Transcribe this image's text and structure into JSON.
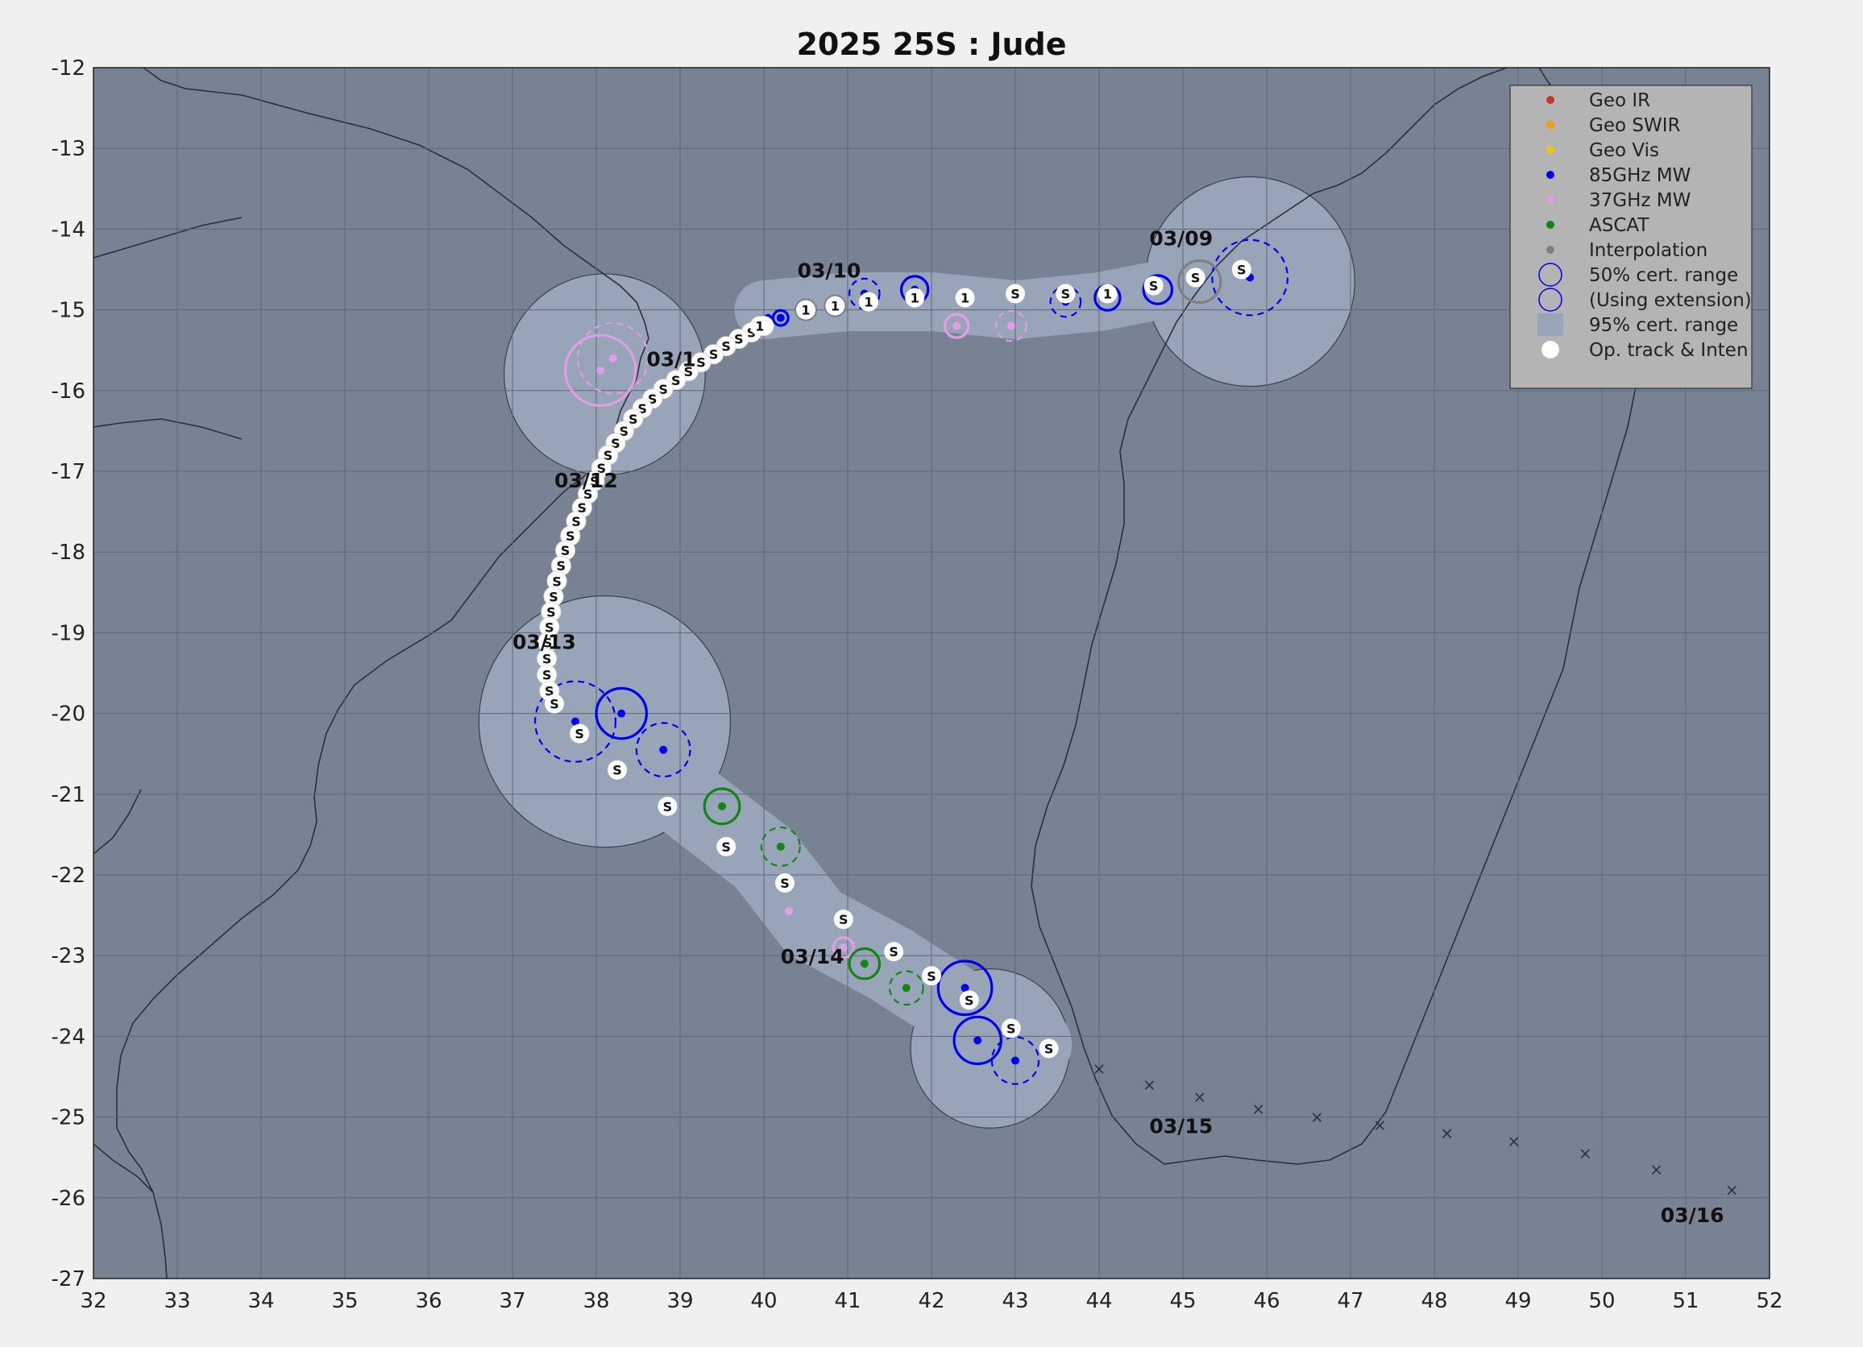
{
  "title": "2025  25S :  Jude",
  "axes": {
    "xlim": [
      32,
      52
    ],
    "ylim": [
      -27,
      -12
    ],
    "xticks": [
      "32",
      "33",
      "34",
      "35",
      "36",
      "37",
      "38",
      "39",
      "40",
      "41",
      "42",
      "43",
      "44",
      "45",
      "46",
      "47",
      "48",
      "49",
      "50",
      "51",
      "52"
    ],
    "yticks": [
      "-12",
      "-13",
      "-14",
      "-15",
      "-16",
      "-17",
      "-18",
      "-19",
      "-20",
      "-21",
      "-22",
      "-23",
      "-24",
      "-25",
      "-26",
      "-27"
    ],
    "grid": true
  },
  "colors": {
    "ocean": "#778293",
    "cert95": "#98a5b9",
    "geo_ir": "#c0392b",
    "geo_swir": "#f39c12",
    "geo_vis": "#f1c40f",
    "mw85": "#0000ee",
    "mw37": "#e39de6",
    "ascat": "#128512",
    "interp": "#808080"
  },
  "legend": {
    "position": "top-right",
    "items": [
      {
        "label": "Geo IR",
        "type": "dot",
        "color": "#c0392b"
      },
      {
        "label": "Geo SWIR",
        "type": "dot",
        "color": "#f39c12"
      },
      {
        "label": "Geo Vis",
        "type": "dot",
        "color": "#f1c40f"
      },
      {
        "label": "85GHz MW",
        "type": "dot",
        "color": "#0000ee"
      },
      {
        "label": "37GHz MW",
        "type": "dot",
        "color": "#e39de6"
      },
      {
        "label": "ASCAT",
        "type": "dot",
        "color": "#128512"
      },
      {
        "label": "Interpolation",
        "type": "dot",
        "color": "#808080"
      },
      {
        "label": "50% cert. range",
        "type": "ring",
        "color": "#0000ee"
      },
      {
        "label": "(Using extension)",
        "type": "ring",
        "color": "#0000ee"
      },
      {
        "label": "95% cert. range",
        "type": "square",
        "color": "#98a5b9"
      },
      {
        "label": "Op. track & Inten",
        "type": "bigdot",
        "color": "#ffffff"
      }
    ]
  },
  "date_labels": [
    {
      "text": "03/09",
      "lon": 44.6,
      "lat": -14.2
    },
    {
      "text": "03/10",
      "lon": 40.4,
      "lat": -14.6
    },
    {
      "text": "03/1",
      "lon": 38.6,
      "lat": -15.7
    },
    {
      "text": "03/12",
      "lon": 37.5,
      "lat": -17.2
    },
    {
      "text": "03/13",
      "lon": 37.0,
      "lat": -19.2
    },
    {
      "text": "03/14",
      "lon": 40.2,
      "lat": -23.1
    },
    {
      "text": "03/15",
      "lon": 44.6,
      "lat": -25.2
    },
    {
      "text": "03/16",
      "lon": 50.7,
      "lat": -26.3
    }
  ],
  "op_track": {
    "label": "S",
    "points": [
      [
        40.0,
        -15.2
      ],
      [
        39.85,
        -15.28
      ],
      [
        39.7,
        -15.36
      ],
      [
        39.55,
        -15.45
      ],
      [
        39.4,
        -15.55
      ],
      [
        39.25,
        -15.65
      ],
      [
        39.1,
        -15.76
      ],
      [
        38.95,
        -15.87
      ],
      [
        38.8,
        -15.98
      ],
      [
        38.67,
        -16.1
      ],
      [
        38.55,
        -16.22
      ],
      [
        38.44,
        -16.35
      ],
      [
        38.33,
        -16.5
      ],
      [
        38.23,
        -16.65
      ],
      [
        38.14,
        -16.8
      ],
      [
        38.06,
        -16.96
      ],
      [
        37.98,
        -17.12
      ],
      [
        37.9,
        -17.28
      ],
      [
        37.83,
        -17.45
      ],
      [
        37.76,
        -17.62
      ],
      [
        37.69,
        -17.8
      ],
      [
        37.63,
        -17.98
      ],
      [
        37.58,
        -18.17
      ],
      [
        37.53,
        -18.36
      ],
      [
        37.49,
        -18.55
      ],
      [
        37.46,
        -18.74
      ],
      [
        37.44,
        -18.93
      ],
      [
        37.42,
        -19.12
      ],
      [
        37.41,
        -19.32
      ],
      [
        37.41,
        -19.52
      ],
      [
        37.44,
        -19.72
      ]
    ]
  },
  "fixes": [
    {
      "lon": 45.8,
      "lat": -14.6,
      "color": "#0000ee",
      "ring": 0.45,
      "dashed": true
    },
    {
      "lon": 45.2,
      "lat": -14.65,
      "color": "#808080",
      "ring": 0.25,
      "dashed": false
    },
    {
      "lon": 44.7,
      "lat": -14.75,
      "color": "#0000ee",
      "ring": 0.17,
      "dashed": false
    },
    {
      "lon": 44.1,
      "lat": -14.85,
      "color": "#0000ee",
      "ring": 0.15,
      "dashed": false
    },
    {
      "lon": 43.6,
      "lat": -14.9,
      "color": "#0000ee",
      "ring": 0.18,
      "dashed": true
    },
    {
      "lon": 42.95,
      "lat": -15.2,
      "color": "#e39de6",
      "ring": 0.18,
      "dashed": true
    },
    {
      "lon": 42.3,
      "lat": -15.2,
      "color": "#e39de6",
      "ring": 0.14,
      "dashed": false
    },
    {
      "lon": 41.8,
      "lat": -14.75,
      "color": "#0000ee",
      "ring": 0.16,
      "dashed": false
    },
    {
      "lon": 41.2,
      "lat": -14.8,
      "color": "#0000ee",
      "ring": 0.18,
      "dashed": true
    },
    {
      "lon": 40.85,
      "lat": -14.95,
      "color": "#808080",
      "ring": 0.12,
      "dashed": false
    },
    {
      "lon": 40.5,
      "lat": -15.0,
      "color": "#808080",
      "ring": 0.12,
      "dashed": false
    },
    {
      "lon": 40.2,
      "lat": -15.1,
      "color": "#0000ee",
      "ring": 0.09,
      "dashed": false
    },
    {
      "lon": 40.05,
      "lat": -15.1,
      "color": "#0000ee",
      "ring": 0.0,
      "dashed": false
    },
    {
      "lon": 38.2,
      "lat": -15.6,
      "color": "#e39de6",
      "ring": 0.42,
      "dashed": true
    },
    {
      "lon": 38.05,
      "lat": -15.75,
      "color": "#e39de6",
      "ring": 0.42,
      "dashed": false
    },
    {
      "lon": 38.3,
      "lat": -20.0,
      "color": "#0000ee",
      "ring": 0.3,
      "dashed": false
    },
    {
      "lon": 37.75,
      "lat": -20.1,
      "color": "#0000ee",
      "ring": 0.48,
      "dashed": true
    },
    {
      "lon": 38.8,
      "lat": -20.45,
      "color": "#0000ee",
      "ring": 0.32,
      "dashed": true
    },
    {
      "lon": 39.5,
      "lat": -21.15,
      "color": "#128512",
      "ring": 0.21,
      "dashed": false
    },
    {
      "lon": 40.2,
      "lat": -21.65,
      "color": "#128512",
      "ring": 0.23,
      "dashed": true
    },
    {
      "lon": 40.3,
      "lat": -22.45,
      "color": "#e39de6",
      "ring": 0.0,
      "dashed": false
    },
    {
      "lon": 40.95,
      "lat": -22.9,
      "color": "#e39de6",
      "ring": 0.12,
      "dashed": false
    },
    {
      "lon": 41.2,
      "lat": -23.1,
      "color": "#128512",
      "ring": 0.18,
      "dashed": false
    },
    {
      "lon": 41.7,
      "lat": -23.4,
      "color": "#128512",
      "ring": 0.2,
      "dashed": true
    },
    {
      "lon": 42.4,
      "lat": -23.4,
      "color": "#0000ee",
      "ring": 0.32,
      "dashed": false
    },
    {
      "lon": 42.55,
      "lat": -24.05,
      "color": "#0000ee",
      "ring": 0.28,
      "dashed": false
    },
    {
      "lon": 43.0,
      "lat": -24.3,
      "color": "#0000ee",
      "ring": 0.28,
      "dashed": true
    }
  ],
  "obs_labels": [
    {
      "text": "S",
      "lon": 45.7,
      "lat": -14.5
    },
    {
      "text": "S",
      "lon": 45.15,
      "lat": -14.6
    },
    {
      "text": "S",
      "lon": 44.65,
      "lat": -14.7
    },
    {
      "text": "1",
      "lon": 44.1,
      "lat": -14.8
    },
    {
      "text": "S",
      "lon": 43.6,
      "lat": -14.8
    },
    {
      "text": "S",
      "lon": 43.0,
      "lat": -14.8
    },
    {
      "text": "1",
      "lon": 42.4,
      "lat": -14.85
    },
    {
      "text": "1",
      "lon": 41.8,
      "lat": -14.85
    },
    {
      "text": "1",
      "lon": 41.25,
      "lat": -14.9
    },
    {
      "text": "1",
      "lon": 40.85,
      "lat": -14.95
    },
    {
      "text": "1",
      "lon": 40.5,
      "lat": -15.0
    },
    {
      "text": "1",
      "lon": 39.95,
      "lat": -15.2
    },
    {
      "text": "S",
      "lon": 37.5,
      "lat": -19.88
    },
    {
      "text": "S",
      "lon": 37.8,
      "lat": -20.25
    },
    {
      "text": "S",
      "lon": 38.25,
      "lat": -20.7
    },
    {
      "text": "S",
      "lon": 38.85,
      "lat": -21.15
    },
    {
      "text": "S",
      "lon": 39.55,
      "lat": -21.65
    },
    {
      "text": "S",
      "lon": 40.25,
      "lat": -22.1
    },
    {
      "text": "S",
      "lon": 40.95,
      "lat": -22.55
    },
    {
      "text": "S",
      "lon": 41.55,
      "lat": -22.95
    },
    {
      "text": "S",
      "lon": 42.0,
      "lat": -23.25
    },
    {
      "text": "S",
      "lon": 42.45,
      "lat": -23.55
    },
    {
      "text": "S",
      "lon": 42.95,
      "lat": -23.9
    },
    {
      "text": "S",
      "lon": 43.4,
      "lat": -24.15
    }
  ],
  "forecast_marks": {
    "symbol": "×",
    "points": [
      [
        44.0,
        -24.4
      ],
      [
        44.6,
        -24.6
      ],
      [
        45.2,
        -24.75
      ],
      [
        45.9,
        -24.9
      ],
      [
        46.6,
        -25.0
      ],
      [
        47.35,
        -25.1
      ],
      [
        48.15,
        -25.2
      ],
      [
        48.95,
        -25.3
      ],
      [
        49.8,
        -25.45
      ],
      [
        50.65,
        -25.65
      ],
      [
        51.55,
        -25.9
      ]
    ]
  }
}
